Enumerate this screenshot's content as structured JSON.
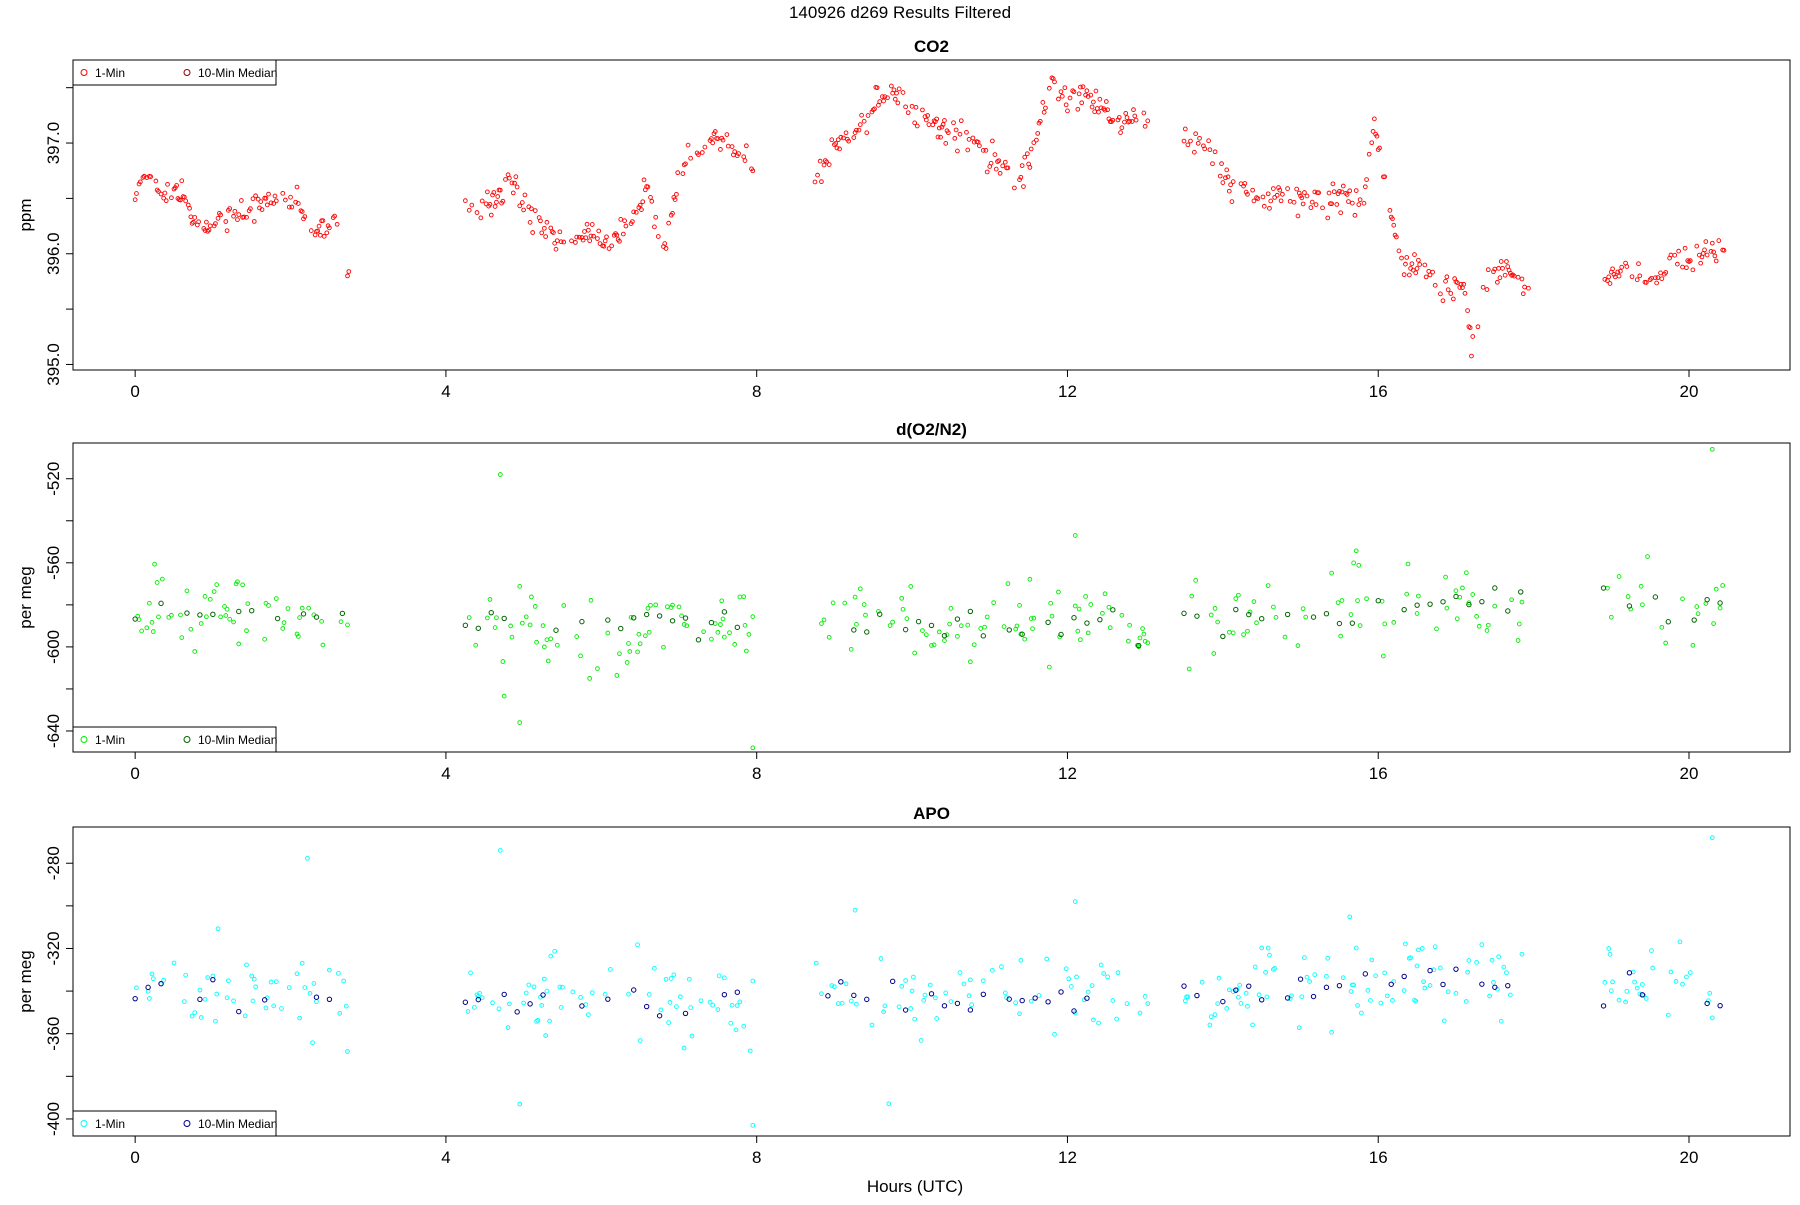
{
  "figure": {
    "title": "140926   d269   Results Filtered",
    "xlabel": "Hours (UTC)"
  },
  "chart_data": [
    {
      "type": "scatter",
      "title": "CO2",
      "ylabel": "ppm",
      "xlim": [
        -0.8,
        21.3
      ],
      "ylim": [
        394.95,
        397.75
      ],
      "xticks": [
        "0",
        "4",
        "8",
        "12",
        "16",
        "20"
      ],
      "yticks": [
        "395.0",
        "",
        "396.0",
        "",
        "397.0",
        ""
      ],
      "ytick_values": [
        395.0,
        395.5,
        396.0,
        396.5,
        397.0,
        397.5
      ],
      "legend": {
        "position": "top-left",
        "entries": [
          "1-Min",
          "10-Min Median"
        ]
      },
      "colors": {
        "one_min": "#ff0000",
        "median": "#8b0000"
      },
      "segments": [
        [
          0.0,
          2.75
        ],
        [
          4.25,
          7.95
        ],
        [
          8.75,
          13.05
        ],
        [
          13.5,
          17.95
        ],
        [
          18.9,
          20.45
        ]
      ],
      "one_min_trend": [
        [
          0.0,
          396.55
        ],
        [
          0.15,
          396.72
        ],
        [
          0.3,
          396.55
        ],
        [
          0.5,
          396.55
        ],
        [
          0.6,
          396.6
        ],
        [
          0.75,
          396.25
        ],
        [
          1.0,
          396.25
        ],
        [
          1.3,
          396.35
        ],
        [
          1.6,
          396.45
        ],
        [
          1.9,
          396.48
        ],
        [
          2.1,
          396.45
        ],
        [
          2.3,
          396.2
        ],
        [
          2.5,
          396.25
        ],
        [
          2.6,
          396.3
        ],
        [
          2.75,
          395.88
        ],
        [
          4.25,
          396.4
        ],
        [
          4.6,
          396.5
        ],
        [
          4.9,
          396.65
        ],
        [
          5.0,
          396.4
        ],
        [
          5.5,
          396.1
        ],
        [
          5.8,
          396.2
        ],
        [
          6.1,
          396.1
        ],
        [
          6.4,
          396.3
        ],
        [
          6.6,
          396.55
        ],
        [
          6.8,
          396.05
        ],
        [
          7.0,
          396.8
        ],
        [
          7.3,
          396.95
        ],
        [
          7.5,
          397.05
        ],
        [
          7.7,
          396.95
        ],
        [
          7.95,
          396.8
        ],
        [
          8.75,
          396.55
        ],
        [
          9.0,
          397.0
        ],
        [
          9.3,
          397.15
        ],
        [
          9.6,
          397.45
        ],
        [
          9.9,
          397.4
        ],
        [
          10.2,
          397.2
        ],
        [
          10.5,
          397.1
        ],
        [
          10.8,
          397.05
        ],
        [
          11.1,
          396.85
        ],
        [
          11.4,
          396.65
        ],
        [
          11.6,
          397.0
        ],
        [
          11.8,
          397.6
        ],
        [
          12.0,
          397.4
        ],
        [
          12.3,
          397.4
        ],
        [
          12.6,
          397.2
        ],
        [
          12.8,
          397.25
        ],
        [
          13.05,
          397.2
        ],
        [
          13.5,
          397.05
        ],
        [
          13.8,
          396.95
        ],
        [
          14.0,
          396.7
        ],
        [
          14.3,
          396.55
        ],
        [
          14.6,
          396.5
        ],
        [
          15.0,
          396.5
        ],
        [
          15.3,
          396.45
        ],
        [
          15.6,
          396.55
        ],
        [
          15.8,
          396.45
        ],
        [
          15.95,
          397.2
        ],
        [
          16.1,
          396.6
        ],
        [
          16.3,
          395.9
        ],
        [
          16.6,
          395.9
        ],
        [
          16.8,
          395.65
        ],
        [
          17.1,
          395.75
        ],
        [
          17.2,
          395.2
        ],
        [
          17.4,
          395.8
        ],
        [
          17.7,
          395.85
        ],
        [
          17.95,
          395.65
        ],
        [
          18.9,
          395.8
        ],
        [
          19.2,
          395.85
        ],
        [
          19.5,
          395.7
        ],
        [
          19.8,
          395.95
        ],
        [
          20.1,
          395.95
        ],
        [
          20.4,
          396.0
        ]
      ],
      "one_min_noise": 0.06,
      "median_every_hours": 0.1667
    },
    {
      "type": "scatter",
      "title": "d(O2/N2)",
      "ylabel": "per meg",
      "xlim": [
        -0.8,
        21.3
      ],
      "ylim": [
        -650,
        -503
      ],
      "xticks": [
        "0",
        "4",
        "8",
        "12",
        "16",
        "20"
      ],
      "yticks": [
        "-640",
        "",
        "-600",
        "",
        "-560",
        "",
        "-520"
      ],
      "ytick_values": [
        -640,
        -620,
        -600,
        -580,
        -560,
        -540,
        -520
      ],
      "legend": {
        "position": "bottom-left",
        "entries": [
          "1-Min",
          "10-Min Median"
        ]
      },
      "colors": {
        "one_min": "#00ee00",
        "median": "#006400"
      },
      "segments": [
        [
          0.0,
          2.75
        ],
        [
          4.25,
          7.95
        ],
        [
          8.75,
          13.05
        ],
        [
          13.5,
          17.95
        ],
        [
          18.9,
          20.45
        ]
      ],
      "one_min_trend": [
        [
          0.0,
          -582
        ],
        [
          2.75,
          -587
        ],
        [
          4.25,
          -590
        ],
        [
          7.95,
          -590
        ],
        [
          8.75,
          -588
        ],
        [
          13.05,
          -590
        ],
        [
          13.5,
          -588
        ],
        [
          16.0,
          -583
        ],
        [
          17.95,
          -578
        ],
        [
          18.9,
          -578
        ],
        [
          20.45,
          -582
        ]
      ],
      "one_min_noise": 9,
      "median_every_hours": 0.1667,
      "outliers": [
        [
          4.7,
          -518
        ],
        [
          4.95,
          -636
        ],
        [
          7.95,
          -648
        ],
        [
          20.3,
          -506
        ],
        [
          12.1,
          -547
        ]
      ]
    },
    {
      "type": "scatter",
      "title": "APO",
      "ylabel": "per meg",
      "xlim": [
        -0.8,
        21.3
      ],
      "ylim": [
        -408,
        -263
      ],
      "xticks": [
        "0",
        "4",
        "8",
        "12",
        "16",
        "20"
      ],
      "yticks": [
        "-400",
        "",
        "-360",
        "",
        "-320",
        "",
        "-280"
      ],
      "ytick_values": [
        -400,
        -380,
        -360,
        -340,
        -320,
        -300,
        -280
      ],
      "legend": {
        "position": "bottom-left",
        "entries": [
          "1-Min",
          "10-Min Median"
        ]
      },
      "colors": {
        "one_min": "#00ffff",
        "median": "#00008b"
      },
      "segments": [
        [
          0.0,
          2.75
        ],
        [
          4.25,
          7.95
        ],
        [
          8.75,
          13.05
        ],
        [
          13.5,
          17.95
        ],
        [
          18.9,
          20.45
        ]
      ],
      "one_min_trend": [
        [
          0.0,
          -340
        ],
        [
          2.75,
          -345
        ],
        [
          4.25,
          -345
        ],
        [
          7.95,
          -344
        ],
        [
          8.75,
          -342
        ],
        [
          13.05,
          -343
        ],
        [
          13.5,
          -342
        ],
        [
          16.0,
          -337
        ],
        [
          17.95,
          -336
        ],
        [
          18.9,
          -335
        ],
        [
          20.45,
          -342
        ]
      ],
      "one_min_noise": 9,
      "median_every_hours": 0.1667,
      "outliers": [
        [
          4.7,
          -274
        ],
        [
          4.95,
          -393
        ],
        [
          7.95,
          -403
        ],
        [
          20.3,
          -268
        ],
        [
          12.1,
          -298
        ]
      ]
    }
  ]
}
